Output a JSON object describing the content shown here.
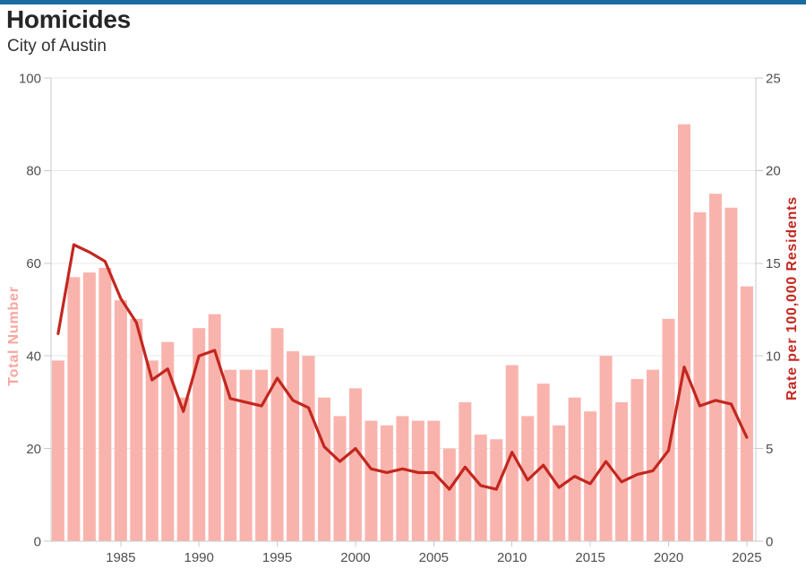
{
  "header": {
    "title": "Homicides",
    "subtitle": "City of Austin"
  },
  "colors": {
    "accent_bar": "#1b6ca3",
    "title_text": "#262626",
    "subtitle_text": "#333333",
    "bar_fill": "#f9b3ad",
    "line": "#c3271f",
    "left_axis_title": "#f8a59e",
    "right_axis_title": "#c3271f",
    "tick_text": "#4f4f4f",
    "gridline": "#e8e8e8",
    "axis_line": "#c9c9c9"
  },
  "chart_data": {
    "type": "bar",
    "title": "Homicides",
    "subtitle": "City of Austin",
    "grid": true,
    "legend_position": "none",
    "x": [
      1981,
      1982,
      1983,
      1984,
      1985,
      1986,
      1987,
      1988,
      1989,
      1990,
      1991,
      1992,
      1993,
      1994,
      1995,
      1996,
      1997,
      1998,
      1999,
      2000,
      2001,
      2002,
      2003,
      2004,
      2005,
      2006,
      2007,
      2008,
      2009,
      2010,
      2011,
      2012,
      2013,
      2014,
      2015,
      2016,
      2017,
      2018,
      2019,
      2020,
      2021,
      2022,
      2023,
      2024,
      2025
    ],
    "series": [
      {
        "name": "Total Number",
        "type": "bar",
        "axis": "left",
        "values": [
          39,
          57,
          58,
          59,
          52,
          48,
          39,
          43,
          31,
          46,
          49,
          37,
          37,
          37,
          46,
          41,
          40,
          31,
          27,
          33,
          26,
          25,
          27,
          26,
          26,
          20,
          30,
          23,
          22,
          38,
          27,
          34,
          25,
          31,
          28,
          40,
          30,
          35,
          37,
          48,
          90,
          71,
          75,
          72,
          55
        ]
      },
      {
        "name": "Rate per 100,000 Residents",
        "type": "line",
        "axis": "right",
        "values": [
          11.2,
          16.0,
          15.6,
          15.1,
          13.1,
          11.8,
          8.7,
          9.3,
          7.0,
          10.0,
          10.3,
          7.7,
          7.5,
          7.3,
          8.8,
          7.6,
          7.2,
          5.1,
          4.3,
          5.0,
          3.9,
          3.7,
          3.9,
          3.7,
          3.7,
          2.8,
          4.0,
          3.0,
          2.8,
          4.8,
          3.3,
          4.1,
          2.9,
          3.5,
          3.1,
          4.3,
          3.2,
          3.6,
          3.8,
          4.9,
          9.4,
          7.3,
          7.6,
          7.4,
          5.6
        ]
      }
    ],
    "left_axis": {
      "label": "Total Number",
      "ticks": [
        0,
        20,
        40,
        60,
        80,
        100
      ],
      "range": [
        0,
        100
      ]
    },
    "right_axis": {
      "label": "Rate per 100,000 Residents",
      "ticks": [
        0,
        5,
        10,
        15,
        20,
        25
      ],
      "range": [
        0,
        25
      ]
    },
    "x_axis": {
      "ticks": [
        1985,
        1990,
        1995,
        2000,
        2005,
        2010,
        2015,
        2020,
        2025
      ]
    }
  }
}
